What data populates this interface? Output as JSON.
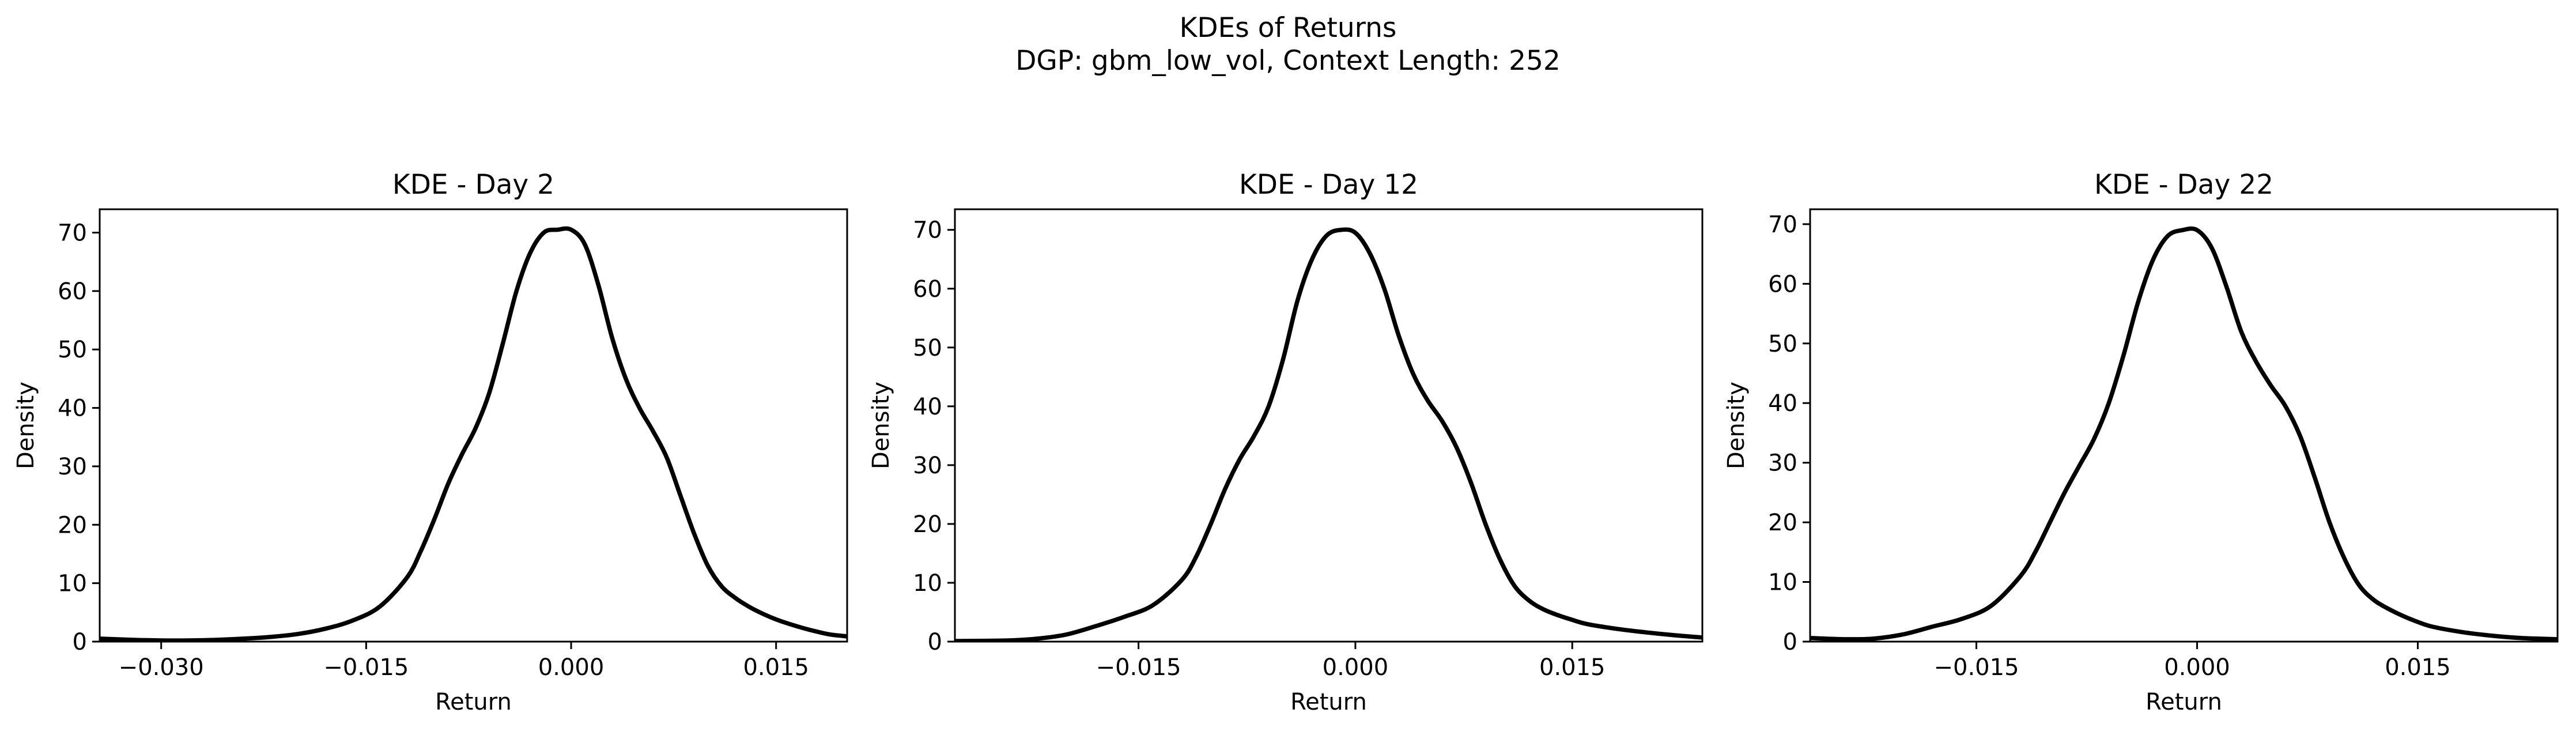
{
  "figure": {
    "title_line1": "KDEs of Returns",
    "title_line2": "DGP: gbm_low_vol, Context Length: 252"
  },
  "chart_data": [
    {
      "type": "line",
      "title": "KDE - Day 2",
      "xlabel": "Return",
      "ylabel": "Density",
      "xlim": [
        -0.0345,
        0.0202
      ],
      "ylim": [
        0,
        74
      ],
      "xticks": [
        -0.03,
        -0.015,
        0.0,
        0.015
      ],
      "xtick_labels": [
        "−0.030",
        "−0.015",
        "0.000",
        "0.015"
      ],
      "yticks": [
        0,
        10,
        20,
        30,
        40,
        50,
        60,
        70
      ],
      "ytick_labels": [
        "0",
        "10",
        "20",
        "30",
        "40",
        "50",
        "60",
        "70"
      ],
      "grid": false,
      "line_color": "#000000",
      "series": [
        {
          "x": [
            -0.0345,
            -0.032,
            -0.03,
            -0.028,
            -0.026,
            -0.024,
            -0.022,
            -0.02,
            -0.018,
            -0.016,
            -0.014,
            -0.012,
            -0.011,
            -0.01,
            -0.009,
            -0.008,
            -0.007,
            -0.006,
            -0.005,
            -0.004,
            -0.003,
            -0.002,
            -0.001,
            0.0,
            0.001,
            0.002,
            0.003,
            0.004,
            0.005,
            0.006,
            0.007,
            0.008,
            0.009,
            0.01,
            0.011,
            0.012,
            0.013,
            0.014,
            0.015,
            0.016,
            0.017,
            0.018,
            0.019,
            0.0202
          ],
          "y": [
            0.5,
            0.3,
            0.2,
            0.2,
            0.3,
            0.5,
            0.8,
            1.3,
            2.2,
            3.6,
            6.0,
            11.0,
            15.5,
            21.0,
            27.0,
            32.0,
            36.5,
            42.5,
            51.0,
            60.0,
            66.5,
            70.0,
            70.5,
            70.5,
            68.0,
            61.0,
            52.0,
            45.0,
            40.0,
            36.0,
            31.5,
            25.0,
            18.5,
            13.0,
            9.5,
            7.5,
            6.0,
            4.8,
            3.8,
            3.0,
            2.3,
            1.7,
            1.2,
            0.9
          ]
        }
      ]
    },
    {
      "type": "line",
      "title": "KDE - Day 12",
      "xlabel": "Return",
      "ylabel": "Density",
      "xlim": [
        -0.0277,
        0.024
      ],
      "ylim": [
        0,
        73.5
      ],
      "xticks": [
        -0.015,
        0.0,
        0.015
      ],
      "xtick_labels": [
        "−0.015",
        "0.000",
        "0.015"
      ],
      "yticks": [
        0,
        10,
        20,
        30,
        40,
        50,
        60,
        70
      ],
      "ytick_labels": [
        "0",
        "10",
        "20",
        "30",
        "40",
        "50",
        "60",
        "70"
      ],
      "grid": false,
      "line_color": "#000000",
      "series": [
        {
          "x": [
            -0.0277,
            -0.024,
            -0.022,
            -0.02,
            -0.018,
            -0.016,
            -0.014,
            -0.012,
            -0.011,
            -0.01,
            -0.009,
            -0.008,
            -0.007,
            -0.006,
            -0.005,
            -0.004,
            -0.003,
            -0.002,
            -0.001,
            0.0,
            0.001,
            0.002,
            0.003,
            0.004,
            0.005,
            0.006,
            0.007,
            0.008,
            0.009,
            0.01,
            0.011,
            0.012,
            0.013,
            0.014,
            0.015,
            0.016,
            0.018,
            0.02,
            0.022,
            0.024
          ],
          "y": [
            0.1,
            0.2,
            0.5,
            1.2,
            2.6,
            4.2,
            6.2,
            10.5,
            14.5,
            20.0,
            26.0,
            31.0,
            35.0,
            40.0,
            48.0,
            58.0,
            65.0,
            69.0,
            70.0,
            69.5,
            66.0,
            60.0,
            52.0,
            45.5,
            41.0,
            37.5,
            33.0,
            27.0,
            20.0,
            14.0,
            9.5,
            7.0,
            5.5,
            4.5,
            3.7,
            3.0,
            2.2,
            1.6,
            1.1,
            0.7
          ]
        }
      ]
    },
    {
      "type": "line",
      "title": "KDE - Day 22",
      "xlabel": "Return",
      "ylabel": "Density",
      "xlim": [
        -0.0263,
        0.0245
      ],
      "ylim": [
        0,
        72.5
      ],
      "xticks": [
        -0.015,
        0.0,
        0.015
      ],
      "xtick_labels": [
        "−0.015",
        "0.000",
        "0.015"
      ],
      "yticks": [
        0,
        10,
        20,
        30,
        40,
        50,
        60,
        70
      ],
      "ytick_labels": [
        "0",
        "10",
        "20",
        "30",
        "40",
        "50",
        "60",
        "70"
      ],
      "grid": false,
      "line_color": "#000000",
      "series": [
        {
          "x": [
            -0.0263,
            -0.024,
            -0.022,
            -0.02,
            -0.018,
            -0.016,
            -0.014,
            -0.012,
            -0.011,
            -0.01,
            -0.009,
            -0.008,
            -0.007,
            -0.006,
            -0.005,
            -0.004,
            -0.003,
            -0.002,
            -0.001,
            0.0,
            0.001,
            0.002,
            0.003,
            0.004,
            0.005,
            0.006,
            0.007,
            0.008,
            0.009,
            0.01,
            0.011,
            0.012,
            0.013,
            0.014,
            0.015,
            0.016,
            0.018,
            0.02,
            0.022,
            0.0245
          ],
          "y": [
            0.6,
            0.4,
            0.5,
            1.2,
            2.5,
            3.8,
            6.0,
            11.0,
            15.0,
            20.0,
            25.0,
            29.5,
            34.0,
            40.0,
            48.0,
            57.0,
            64.0,
            68.0,
            69.0,
            69.0,
            66.0,
            59.5,
            52.0,
            47.0,
            43.0,
            39.5,
            34.5,
            27.5,
            20.0,
            14.0,
            9.5,
            7.0,
            5.5,
            4.3,
            3.3,
            2.5,
            1.6,
            1.0,
            0.6,
            0.4
          ]
        }
      ]
    }
  ]
}
